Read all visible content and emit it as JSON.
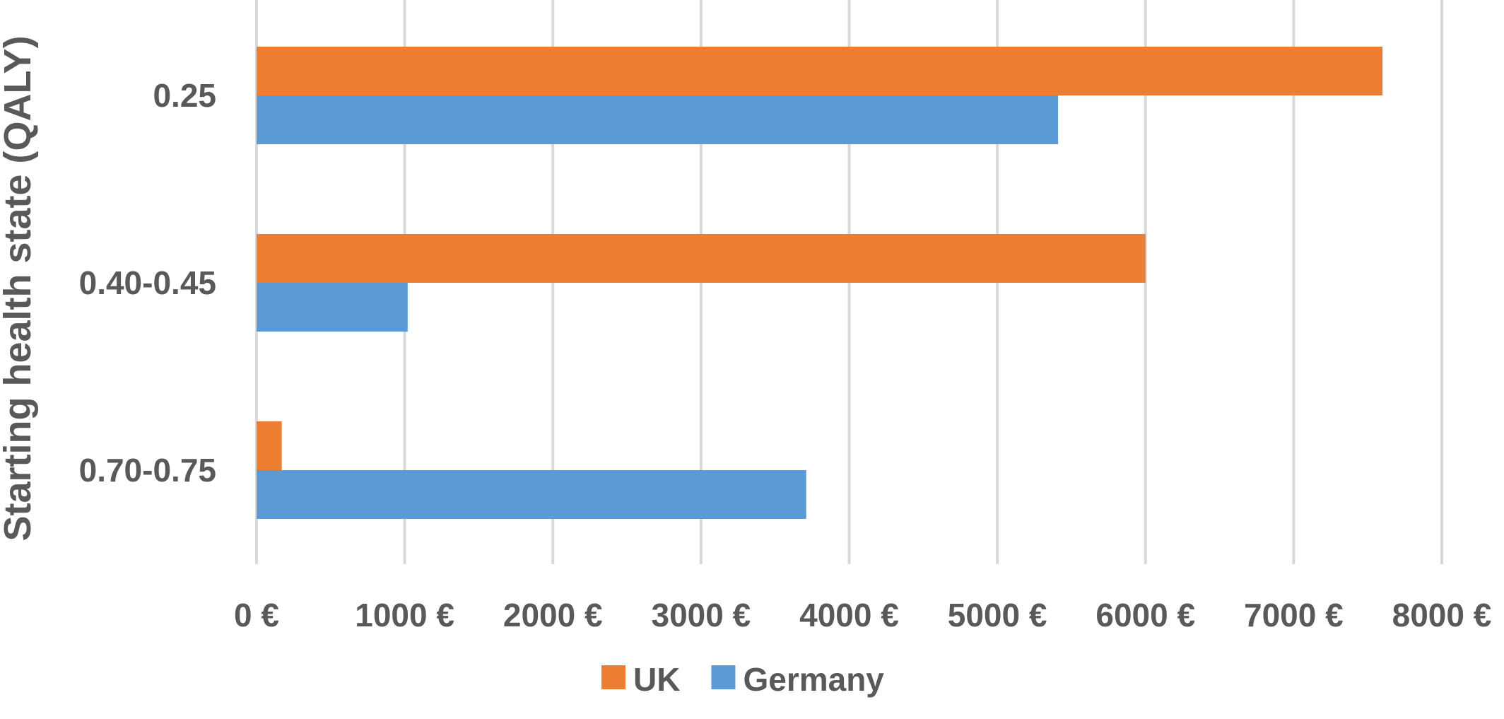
{
  "chart_data": {
    "type": "bar",
    "orientation": "horizontal",
    "ylabel": "Starting health state (QALY)",
    "xlabel": "",
    "categories": [
      "0.25",
      "0.40-0.45",
      "0.70-0.75"
    ],
    "series": [
      {
        "name": "UK",
        "color": "#ED7D31",
        "values": [
          7600,
          6000,
          170
        ]
      },
      {
        "name": "Germany",
        "color": "#5B9BD5",
        "values": [
          5410,
          1020,
          3710
        ]
      }
    ],
    "xlim": [
      0,
      8000
    ],
    "xticks": [
      0,
      1000,
      2000,
      3000,
      4000,
      5000,
      6000,
      7000,
      8000
    ],
    "xtick_labels": [
      "0 €",
      "1000 €",
      "2000 €",
      "3000 €",
      "4000 €",
      "5000 €",
      "6000 €",
      "7000 €",
      "8000 €"
    ],
    "grid": "vertical",
    "legend_position": "bottom"
  }
}
